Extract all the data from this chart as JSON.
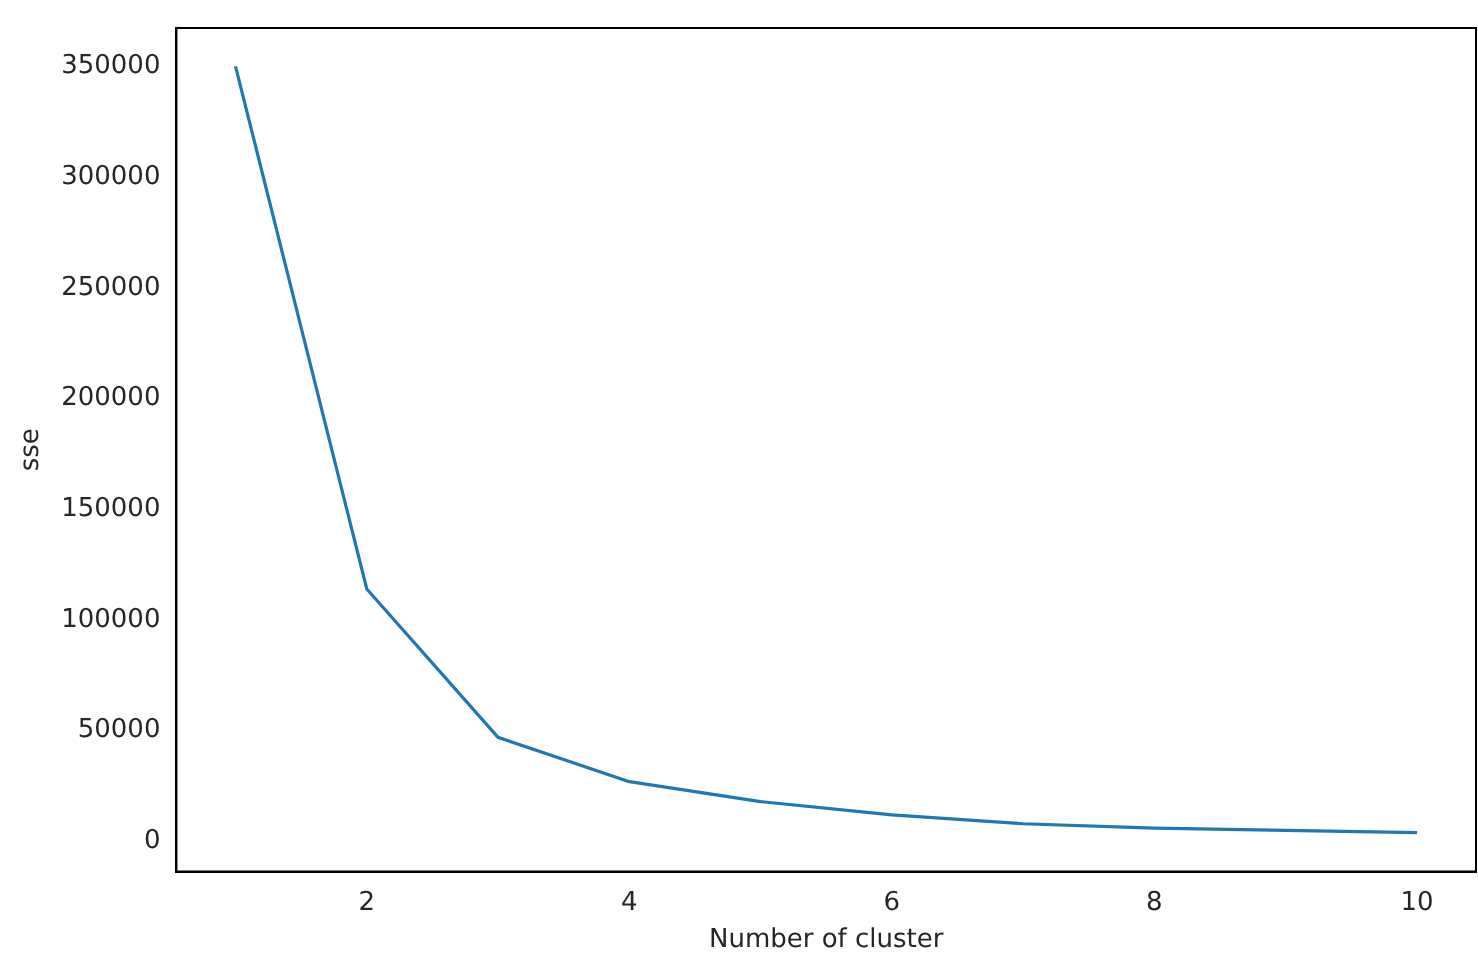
{
  "chart_data": {
    "type": "line",
    "xlabel": "Number of cluster",
    "ylabel": "sse",
    "x": [
      1,
      2,
      3,
      4,
      5,
      6,
      7,
      8,
      9,
      10
    ],
    "series": [
      {
        "color": "#1f77b4",
        "values": [
          350000,
          114000,
          47000,
          27000,
          18000,
          12000,
          8000,
          6000,
          5000,
          4000
        ]
      }
    ],
    "xlim": [
      0.55,
      10.45
    ],
    "xticks": [
      2,
      4,
      6,
      8,
      10
    ],
    "ylim": [
      -13600,
      367300
    ],
    "yticks": [
      0,
      50000,
      100000,
      150000,
      200000,
      250000,
      300000,
      350000
    ],
    "grid": false,
    "legend": false,
    "marker": "none",
    "line_style": "solid"
  }
}
